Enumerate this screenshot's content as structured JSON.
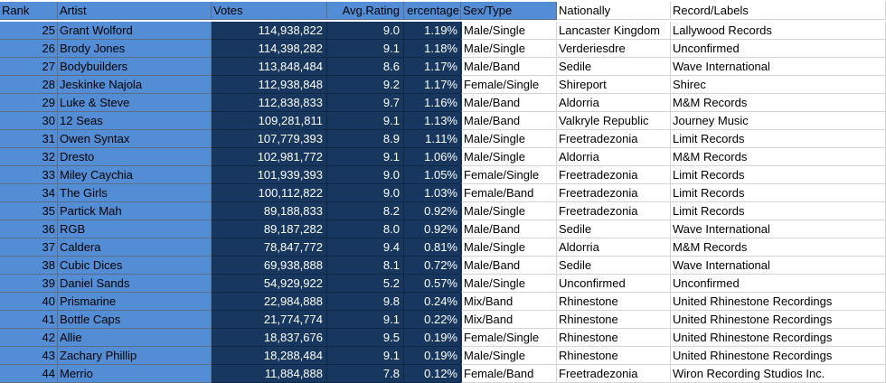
{
  "headers": {
    "rank": "Rank",
    "artist": "Artist",
    "votes": "Votes",
    "rating": "Avg.Rating",
    "percentage": "ercentage",
    "sex_type": "Sex/Type",
    "nationally": "Nationally",
    "labels": "Record/Labels"
  },
  "rows": [
    {
      "rank": "25",
      "artist": "Grant Wolford",
      "votes": "114,938,822",
      "rating": "9.0",
      "pct": "1.19%",
      "sex": "Male/Single",
      "nat": "Lancaster Kingdom",
      "label": "Lallywood Records"
    },
    {
      "rank": "26",
      "artist": "Brody Jones",
      "votes": "114,398,282",
      "rating": "9.1",
      "pct": "1.18%",
      "sex": "Male/Single",
      "nat": "Verderiesdre",
      "label": "Unconfirmed"
    },
    {
      "rank": "27",
      "artist": "Bodybuilders",
      "votes": "113,848,484",
      "rating": "8.6",
      "pct": "1.17%",
      "sex": "Male/Band",
      "nat": "Sedile",
      "label": "Wave International"
    },
    {
      "rank": "28",
      "artist": "Jeskinke Najola",
      "votes": "112,938,848",
      "rating": "9.2",
      "pct": "1.17%",
      "sex": "Female/Single",
      "nat": "Shireport",
      "label": "Shirec"
    },
    {
      "rank": "29",
      "artist": "Luke & Steve",
      "votes": "112,838,833",
      "rating": "9.7",
      "pct": "1.16%",
      "sex": "Male/Band",
      "nat": "Aldorria",
      "label": "M&M Records"
    },
    {
      "rank": "30",
      "artist": "12 Seas",
      "votes": "109,281,811",
      "rating": "9.1",
      "pct": "1.13%",
      "sex": "Male/Band",
      "nat": "Valkryle Republic",
      "label": "Journey Music"
    },
    {
      "rank": "31",
      "artist": "Owen Syntax",
      "votes": "107,779,393",
      "rating": "8.9",
      "pct": "1.11%",
      "sex": "Male/Single",
      "nat": "Freetradezonia",
      "label": "Limit Records"
    },
    {
      "rank": "32",
      "artist": "Dresto",
      "votes": "102,981,772",
      "rating": "9.1",
      "pct": "1.06%",
      "sex": "Male/Single",
      "nat": "Aldorria",
      "label": "M&M Records"
    },
    {
      "rank": "33",
      "artist": "Miley Caychia",
      "votes": "101,939,393",
      "rating": "9.0",
      "pct": "1.05%",
      "sex": "Female/Single",
      "nat": "Freetradezonia",
      "label": "Limit Records"
    },
    {
      "rank": "34",
      "artist": "The Girls",
      "votes": "100,112,822",
      "rating": "9.0",
      "pct": "1.03%",
      "sex": "Female/Band",
      "nat": "Freetradezonia",
      "label": "Limit Records"
    },
    {
      "rank": "35",
      "artist": "Partick Mah",
      "votes": "89,188,833",
      "rating": "8.2",
      "pct": "0.92%",
      "sex": "Male/Single",
      "nat": "Freetradezonia",
      "label": "Limit Records"
    },
    {
      "rank": "36",
      "artist": "RGB",
      "votes": "89,187,282",
      "rating": "8.0",
      "pct": "0.92%",
      "sex": "Male/Band",
      "nat": "Sedile",
      "label": "Wave International"
    },
    {
      "rank": "37",
      "artist": "Caldera",
      "votes": "78,847,772",
      "rating": "9.4",
      "pct": "0.81%",
      "sex": "Male/Single",
      "nat": "Aldorria",
      "label": "M&M Records"
    },
    {
      "rank": "38",
      "artist": "Cubic Dices",
      "votes": "69,938,888",
      "rating": "8.1",
      "pct": "0.72%",
      "sex": "Male/Band",
      "nat": "Sedile",
      "label": "Wave International"
    },
    {
      "rank": "39",
      "artist": "Daniel Sands",
      "votes": "54,929,922",
      "rating": "5.2",
      "pct": "0.57%",
      "sex": "Male/Single",
      "nat": "Unconfirmed",
      "label": "Unconfirmed"
    },
    {
      "rank": "40",
      "artist": "Prismarine",
      "votes": "22,984,888",
      "rating": "9.8",
      "pct": "0.24%",
      "sex": "Mix/Band",
      "nat": "Rhinestone",
      "label": "United Rhinestone Recordings"
    },
    {
      "rank": "41",
      "artist": "Bottle Caps",
      "votes": "21,774,774",
      "rating": "9.1",
      "pct": "0.22%",
      "sex": "Mix/Band",
      "nat": "Rhinestone",
      "label": "United Rhinestone Recordings"
    },
    {
      "rank": "42",
      "artist": "Allie",
      "votes": "18,837,676",
      "rating": "9.5",
      "pct": "0.19%",
      "sex": "Female/Single",
      "nat": "Rhinestone",
      "label": "United Rhinestone Recordings"
    },
    {
      "rank": "43",
      "artist": "Zachary Phillip",
      "votes": "18,288,484",
      "rating": "9.1",
      "pct": "0.19%",
      "sex": "Male/Single",
      "nat": "Rhinestone",
      "label": "United Rhinestone Recordings"
    },
    {
      "rank": "44",
      "artist": "Merrio",
      "votes": "11,884,888",
      "rating": "7.8",
      "pct": "0.12%",
      "sex": "Female/Band",
      "nat": "Freetradezonia",
      "label": "Wiron Recording Studios Inc."
    }
  ]
}
